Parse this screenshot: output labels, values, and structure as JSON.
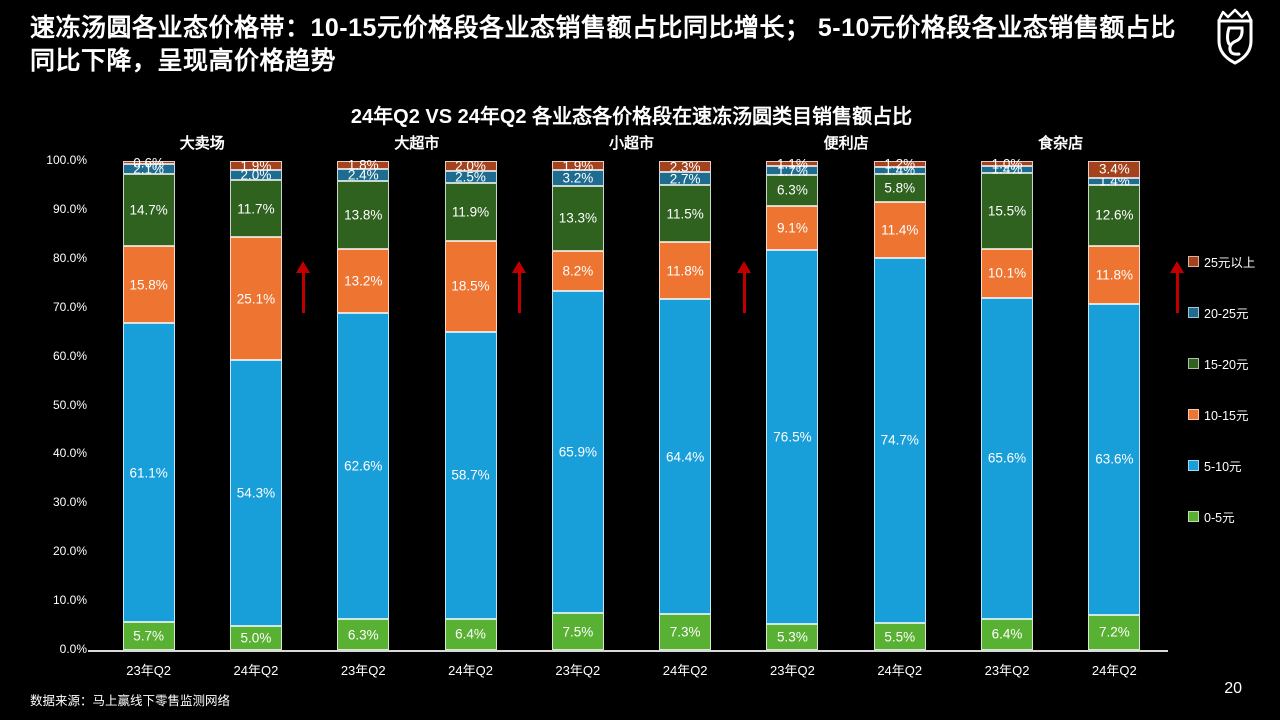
{
  "page": {
    "title": "速冻汤圆各业态价格带：10-15元价格段各业态销售额占比同比增长； 5-10元价格段各业态销售额占比同比下降，呈现高价格趋势",
    "source_note": "数据来源：马上赢线下零售监测网络",
    "page_number": "20"
  },
  "chart_data": {
    "type": "bar",
    "stacked": true,
    "title": "24年Q2 VS 24年Q2 各业态各价格段在速冻汤圆类目销售额占比",
    "groups": [
      "大卖场",
      "大超市",
      "小超市",
      "便利店",
      "食杂店"
    ],
    "x_labels": [
      "23年Q2",
      "24年Q2",
      "23年Q2",
      "24年Q2",
      "23年Q2",
      "24年Q2",
      "23年Q2",
      "24年Q2",
      "23年Q2",
      "24年Q2"
    ],
    "y_ticks": [
      "100.0%",
      "90.0%",
      "80.0%",
      "70.0%",
      "60.0%",
      "50.0%",
      "40.0%",
      "30.0%",
      "20.0%",
      "10.0%",
      "0.0%"
    ],
    "ylim": [
      0,
      100
    ],
    "unit": "%",
    "grid": false,
    "legend_position": "right",
    "series": [
      {
        "name": "0-5元",
        "color": "#58B133",
        "values": [
          5.7,
          5.0,
          6.3,
          6.4,
          7.5,
          7.3,
          5.3,
          5.5,
          6.4,
          7.2
        ]
      },
      {
        "name": "5-10元",
        "color": "#189FD9",
        "values": [
          61.1,
          54.3,
          62.6,
          58.7,
          65.9,
          64.4,
          76.5,
          74.7,
          65.6,
          63.6
        ]
      },
      {
        "name": "10-15元",
        "color": "#ED7431",
        "values": [
          15.8,
          25.1,
          13.2,
          18.5,
          8.2,
          11.8,
          9.1,
          11.4,
          10.1,
          11.8
        ]
      },
      {
        "name": "15-20元",
        "color": "#2F611F",
        "values": [
          14.7,
          11.7,
          13.8,
          11.9,
          13.3,
          11.5,
          6.3,
          5.8,
          15.5,
          12.6
        ]
      },
      {
        "name": "20-25元",
        "color": "#1E6C90",
        "values": [
          2.1,
          2.0,
          2.4,
          2.5,
          3.2,
          2.7,
          1.7,
          1.4,
          1.4,
          1.4
        ]
      },
      {
        "name": "25元以上",
        "color": "#A3421C",
        "values": [
          0.6,
          1.9,
          1.8,
          2.0,
          1.9,
          2.3,
          1.1,
          1.2,
          1.0,
          3.4
        ]
      }
    ],
    "legend": [
      {
        "label": "25元以上",
        "color": "#A3421C"
      },
      {
        "label": "20-25元",
        "color": "#1E6C90"
      },
      {
        "label": "15-20元",
        "color": "#2F611F"
      },
      {
        "label": "10-15元",
        "color": "#ED7431"
      },
      {
        "label": "5-10元",
        "color": "#189FD9"
      },
      {
        "label": "0-5元",
        "color": "#58B133"
      }
    ],
    "arrows": {
      "color": "#C00000",
      "direction": "up",
      "after_groups": [
        0,
        1,
        2,
        4
      ]
    }
  }
}
